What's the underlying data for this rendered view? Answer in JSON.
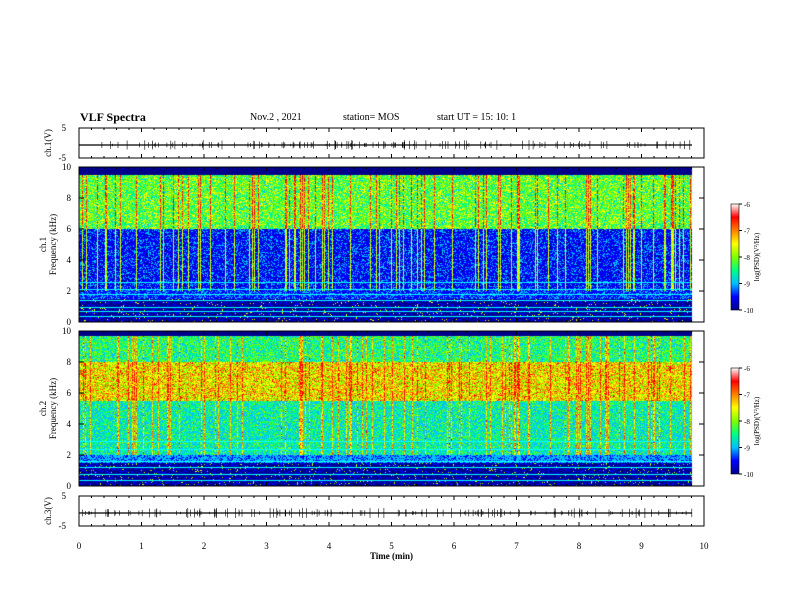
{
  "header": {
    "title": "VLF Spectra",
    "date": "Nov.2 , 2021",
    "station": "station= MOS",
    "start": "start UT = 15: 10: 1"
  },
  "chart_data": [
    {
      "type": "line",
      "name": "ch1-waveform",
      "ylabel": "ch.1(V)",
      "ylim": [
        -5,
        5
      ],
      "yticks": [
        "5",
        "-5"
      ],
      "xlim": [
        0,
        10
      ]
    },
    {
      "type": "heatmap",
      "name": "ch1-spectrogram",
      "ylabel_line1": "ch.1",
      "ylabel_line2": "Frequency (kHz)",
      "ylim": [
        0,
        10
      ],
      "yticks": [
        "0",
        "2",
        "4",
        "6",
        "8",
        "10"
      ],
      "xlim": [
        0,
        10
      ],
      "band_low_khz": 1.5,
      "band_high_khz": [
        6,
        9.5
      ],
      "colorbar": {
        "label": "log(PSD)(V²/Hz)",
        "range": [
          -10,
          -6
        ],
        "ticks": [
          "-6",
          "-7",
          "-8",
          "-9",
          "-10"
        ]
      }
    },
    {
      "type": "heatmap",
      "name": "ch2-spectrogram",
      "ylabel_line1": "ch.2",
      "ylabel_line2": "Frequency (kHz)",
      "ylim": [
        0,
        10
      ],
      "yticks": [
        "0",
        "2",
        "4",
        "6",
        "8",
        "10"
      ],
      "xlim": [
        0,
        10
      ],
      "peak_band_khz": [
        5.5,
        8
      ],
      "colorbar": {
        "label": "log(PSD)(V²/Hz)",
        "range": [
          -10,
          -6
        ],
        "ticks": [
          "-6",
          "-7",
          "-8",
          "-9",
          "-10"
        ]
      }
    },
    {
      "type": "line",
      "name": "ch3-waveform",
      "ylabel": "ch.3(V)",
      "ylim": [
        -5,
        5
      ],
      "yticks": [
        "5",
        "-5"
      ],
      "xlim": [
        0,
        10
      ],
      "xlabel": "Time (min)",
      "xticks": [
        "0",
        "1",
        "2",
        "3",
        "4",
        "5",
        "6",
        "7",
        "8",
        "9",
        "10"
      ]
    }
  ],
  "colors": {
    "colormap": [
      "#00008b",
      "#0000ff",
      "#00bfff",
      "#00ff80",
      "#80ff00",
      "#ffff00",
      "#ff8000",
      "#ff0000",
      "#ffffff"
    ]
  }
}
